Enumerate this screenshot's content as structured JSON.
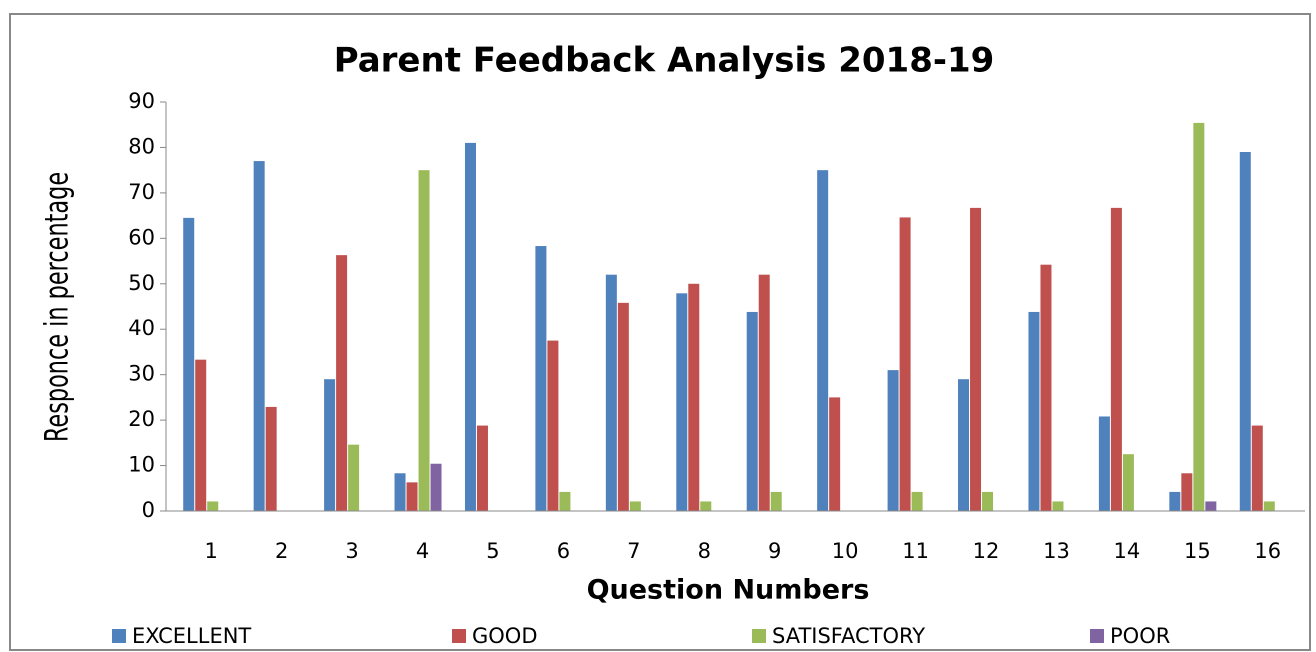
{
  "chart_data": {
    "type": "bar",
    "title": "Parent Feedback Analysis  2018-19",
    "x_label": "Question Numbers",
    "y_label": "Responce in percentage",
    "categories": [
      "1",
      "2",
      "3",
      "4",
      "5",
      "6",
      "7",
      "8",
      "9",
      "10",
      "11",
      "12",
      "13",
      "14",
      "15",
      "16"
    ],
    "series": [
      {
        "name": "EXCELLENT",
        "color": "#4f81bd",
        "values": [
          64.5,
          77,
          29,
          8.3,
          81,
          58.3,
          52,
          47.9,
          43.8,
          75,
          31,
          29,
          43.8,
          20.8,
          4.2,
          79
        ]
      },
      {
        "name": "GOOD",
        "color": "#c0504d",
        "values": [
          33.3,
          22.9,
          56.3,
          6.3,
          18.8,
          37.5,
          45.8,
          50,
          52,
          25,
          64.6,
          66.7,
          54.2,
          66.7,
          8.3,
          18.8
        ]
      },
      {
        "name": "SATISFACTORY",
        "color": "#9bbb59",
        "values": [
          2.1,
          0,
          14.6,
          75,
          0,
          4.2,
          2.1,
          2.1,
          4.2,
          0,
          4.2,
          4.2,
          2.1,
          12.5,
          85.4,
          2.1
        ]
      },
      {
        "name": "POOR",
        "color": "#8064a2",
        "values": [
          0,
          0,
          0,
          10.4,
          0,
          0,
          0,
          0,
          0,
          0,
          0,
          0,
          0,
          0,
          2.1,
          0
        ]
      }
    ],
    "ylim": [
      0,
      90
    ],
    "yticks": [
      0,
      10,
      20,
      30,
      40,
      50,
      60,
      70,
      80,
      90
    ],
    "grid": false,
    "legend": "bottom"
  }
}
